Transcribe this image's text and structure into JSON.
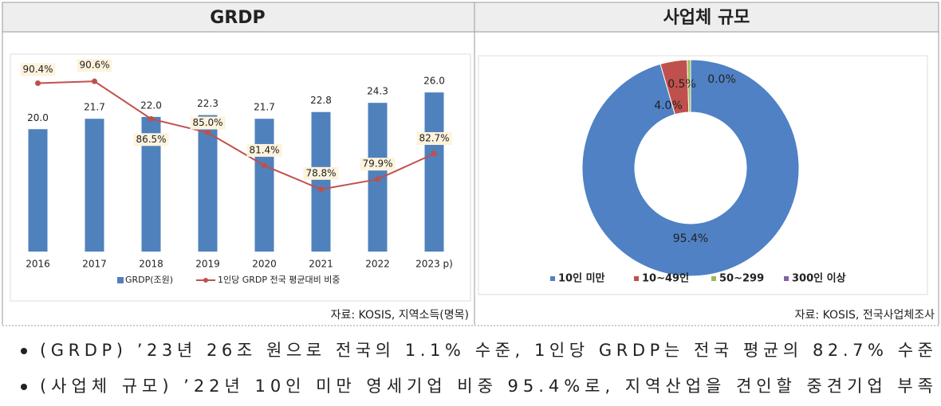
{
  "headers": [
    "GRDP",
    "사업체 규모"
  ],
  "chart_data": [
    {
      "type": "bar",
      "categories": [
        "2016",
        "2017",
        "2018",
        "2019",
        "2020",
        "2021",
        "2022",
        "2023 p)"
      ],
      "series": [
        {
          "name": "GRDP(조원)",
          "color": "#4f81bd",
          "values": [
            20,
            21.7,
            22,
            22.3,
            21.7,
            22.8,
            24.3,
            26
          ],
          "value_labels": [
            "20.0",
            "21.7",
            "22.0",
            "22.3",
            "21.7",
            "22.8",
            "24.3",
            "26.0"
          ]
        },
        {
          "name": "1인당 GRDP 전국 평균대비 비중",
          "type": "line",
          "axis": "y2",
          "color": "#c0504d",
          "values": [
            90.4,
            90.6,
            86.5,
            85.0,
            81.4,
            78.8,
            79.9,
            82.7
          ],
          "value_labels": [
            "90.4%",
            "90.6%",
            "86.5%",
            "85.0%",
            "81.4%",
            "78.8%",
            "79.9%",
            "82.7%"
          ]
        }
      ],
      "ylim": [
        0,
        32
      ],
      "y2lim": [
        72,
        93.4
      ],
      "legend": "bottom"
    },
    {
      "type": "pie",
      "donut": true,
      "categories": [
        "10인 미만",
        "10~49인",
        "50~299",
        "300인 이상"
      ],
      "values": [
        95.4,
        4.0,
        0.5,
        0.0
      ],
      "value_labels": [
        "95.4%",
        "4.0%",
        "0.5%",
        "0.0%"
      ],
      "colors": [
        "#4f81c4",
        "#c0504d",
        "#9bbb59",
        "#8064a2"
      ],
      "legend": "bottom"
    }
  ],
  "sources": [
    "자료: KOSIS, 지역소득(명목)",
    "자료: KOSIS, 전국사업체조사"
  ],
  "bullets": [
    "(GRDP) ’23년 26조 원으로 전국의 1.1% 수준, 1인당 GRDP는 전국 평균의 82.7% 수준",
    "(사업체 규모) ’22년 10인 미만 영세기업 비중 95.4%로, 지역산업을 견인할 중견기업 부족"
  ]
}
